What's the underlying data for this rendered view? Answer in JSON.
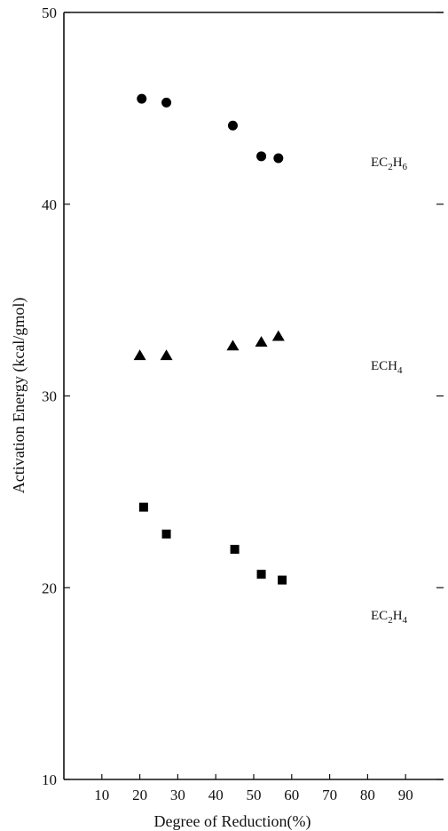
{
  "chart_data": {
    "type": "scatter",
    "xlabel": "Degree of Reduction(%)",
    "ylabel": "Activation Energy (kcal/gmol)",
    "xlim": [
      0,
      100
    ],
    "ylim": [
      10,
      50
    ],
    "x_ticks": [
      10,
      20,
      30,
      40,
      50,
      60,
      70,
      80,
      90
    ],
    "y_ticks": [
      10,
      20,
      30,
      40,
      50
    ],
    "grid": false,
    "legend": "inline labels at right",
    "series": [
      {
        "label": {
          "base": "E",
          "parts": [
            [
              "C",
              false
            ],
            [
              "2",
              true
            ],
            [
              "H",
              false
            ],
            [
              "6",
              true
            ]
          ]
        },
        "marker": "circle",
        "color": "#000000",
        "points": [
          [
            20.5,
            45.5
          ],
          [
            27,
            45.3
          ],
          [
            44.5,
            44.1
          ],
          [
            52,
            42.5
          ],
          [
            56.5,
            42.4
          ]
        ]
      },
      {
        "label": {
          "base": "E",
          "parts": [
            [
              "CH",
              false
            ],
            [
              "4",
              true
            ]
          ]
        },
        "marker": "triangle",
        "color": "#000000",
        "points": [
          [
            20,
            32.1
          ],
          [
            27,
            32.1
          ],
          [
            44.5,
            32.6
          ],
          [
            52,
            32.8
          ],
          [
            56.5,
            33.1
          ]
        ]
      },
      {
        "label": {
          "base": "E",
          "parts": [
            [
              "C",
              false
            ],
            [
              "2",
              true
            ],
            [
              "H",
              false
            ],
            [
              "4",
              true
            ]
          ]
        },
        "marker": "square",
        "color": "#000000",
        "points": [
          [
            21,
            24.2
          ],
          [
            27,
            22.8
          ],
          [
            45,
            22
          ],
          [
            52,
            20.7
          ],
          [
            57.5,
            20.4
          ]
        ]
      }
    ]
  }
}
